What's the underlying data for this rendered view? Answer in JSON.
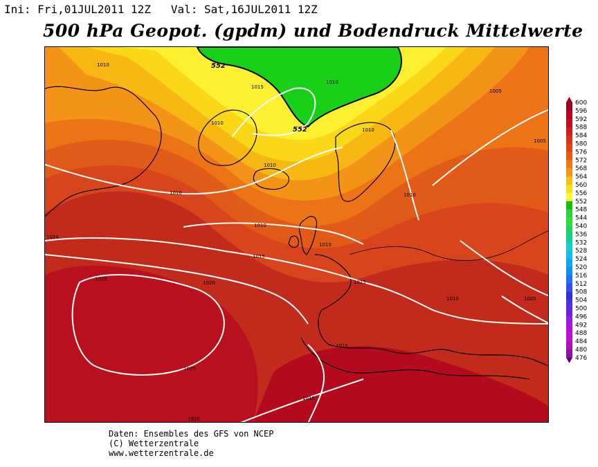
{
  "header": {
    "init_label": "Ini:",
    "init_time": "Fri,01JUL2011 12Z",
    "valid_label": "Val:",
    "valid_time": "Sat,16JUL2011 12Z",
    "title": "500 hPa Geopot. (gpdm) und Bodendruck Mittelwerte"
  },
  "map": {
    "geopotential_labels": [
      "552",
      "552"
    ],
    "isobar_labels": [
      "1010",
      "1015",
      "1010",
      "1010",
      "1010",
      "1010",
      "1010",
      "1005",
      "1005",
      "1010",
      "1010",
      "1015",
      "1020",
      "1025",
      "1025",
      "1010",
      "1015",
      "1015",
      "1020",
      "1015",
      "1005",
      "1024"
    ]
  },
  "legend": {
    "levels": [
      600,
      596,
      592,
      588,
      584,
      580,
      576,
      572,
      568,
      564,
      560,
      556,
      552,
      548,
      544,
      540,
      536,
      532,
      528,
      524,
      520,
      516,
      512,
      508,
      504,
      500,
      496,
      492,
      488,
      484,
      480,
      476
    ],
    "colors": [
      "#a0001e",
      "#b8051e",
      "#c2101a",
      "#cc1e1a",
      "#d8321a",
      "#e04418",
      "#e85a10",
      "#f07818",
      "#f49818",
      "#f8c010",
      "#fae018",
      "#fcf53a",
      "#10c010",
      "#30d040",
      "#30e030",
      "#20d060",
      "#10d090",
      "#10d0d0",
      "#10c0e8",
      "#10a8f0",
      "#1090f0",
      "#2070f0",
      "#3050f0",
      "#3030e0",
      "#5030e0",
      "#7020e0",
      "#9020e0",
      "#b010e0",
      "#c010d0",
      "#b010b0",
      "#9010a0",
      "#600070"
    ]
  },
  "footer": {
    "line1": "Daten: Ensembles des GFS von NCEP",
    "line2": "(C) Wetterzentrale",
    "line3": "www.wetterzentrale.de"
  }
}
